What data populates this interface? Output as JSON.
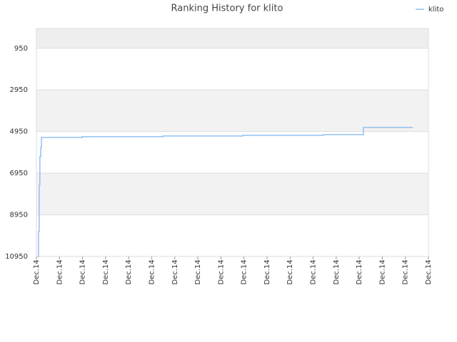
{
  "chart_data": {
    "type": "line",
    "title": "Ranking History for klito",
    "x": [
      0.06,
      0.09,
      0.12,
      0.15,
      0.19,
      0.22,
      1.98,
      5.48,
      8.95,
      12.45,
      14.18,
      16.32
    ],
    "series": [
      {
        "name": "klito",
        "color": "#90c0f0",
        "values": [
          10950,
          9751,
          7525,
          6155,
          5710,
          5231,
          5197,
          5162,
          5128,
          5094,
          4751,
          4751
        ]
      }
    ],
    "step": true,
    "xlim": [
      0,
      17
    ],
    "xticks": [
      {
        "value": 0,
        "label": "Dec.14"
      },
      {
        "value": 1,
        "label": "Dec.14"
      },
      {
        "value": 2,
        "label": "Dec.14"
      },
      {
        "value": 3,
        "label": "Dec.14"
      },
      {
        "value": 4,
        "label": "Dec.14"
      },
      {
        "value": 5,
        "label": "Dec.14"
      },
      {
        "value": 6,
        "label": "Dec.14"
      },
      {
        "value": 7,
        "label": "Dec.14"
      },
      {
        "value": 8,
        "label": "Dec.14"
      },
      {
        "value": 9,
        "label": "Dec.14"
      },
      {
        "value": 10,
        "label": "Dec.14"
      },
      {
        "value": 11,
        "label": "Dec.14"
      },
      {
        "value": 12,
        "label": "Dec.14"
      },
      {
        "value": 13,
        "label": "Dec.14"
      },
      {
        "value": 14,
        "label": "Dec.14"
      },
      {
        "value": 15,
        "label": "Dec.14"
      },
      {
        "value": 16,
        "label": "Dec.14"
      },
      {
        "value": 17,
        "label": "Dec.14"
      }
    ],
    "ylim": [
      10950,
      0
    ],
    "yticks": [
      950,
      2950,
      4950,
      6950,
      8950,
      10950
    ],
    "grid": true,
    "legend": "top-right"
  }
}
